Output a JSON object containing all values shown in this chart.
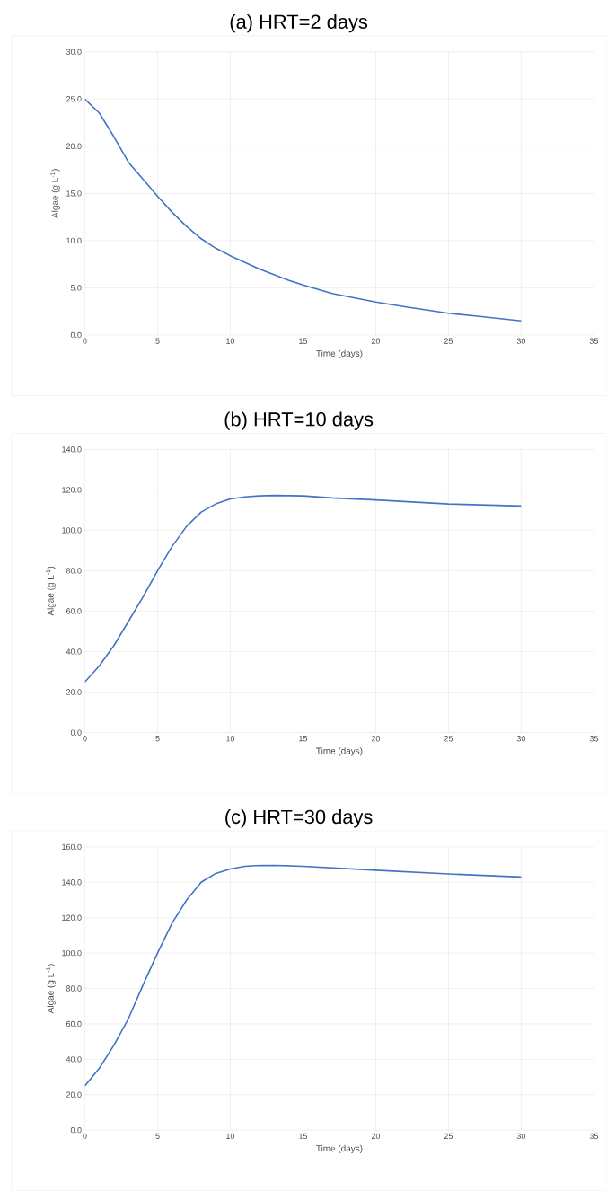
{
  "chart_data": [
    {
      "type": "line",
      "title": "(a) HRT=2 days",
      "xlabel": "Time (days)",
      "ylabel": "Algae (g L$^{-1}$)",
      "color": "#4472c4",
      "grid": true,
      "x": [
        0,
        1,
        2,
        3,
        4,
        5,
        6,
        7,
        8,
        9,
        10,
        12,
        14,
        15,
        17,
        20,
        22,
        25,
        27,
        30
      ],
      "values": [
        25,
        23.5,
        21,
        18.3,
        16.5,
        14.7,
        13,
        11.5,
        10.2,
        9.2,
        8.4,
        7,
        5.8,
        5.3,
        4.4,
        3.5,
        3,
        2.3,
        2,
        1.5
      ],
      "xlim": [
        0,
        35
      ],
      "xticks": [
        0,
        5,
        10,
        15,
        20,
        25,
        30,
        35
      ],
      "ylim": [
        0,
        30
      ],
      "yticks": [
        {
          "value": 0,
          "label": "0.0"
        },
        {
          "value": 5,
          "label": "5.0"
        },
        {
          "value": 10,
          "label": "10.0"
        },
        {
          "value": 15,
          "label": "15.0"
        },
        {
          "value": 20,
          "label": "20.0"
        },
        {
          "value": 25,
          "label": "25.0"
        },
        {
          "value": 30,
          "label": "30.0"
        }
      ]
    },
    {
      "type": "line",
      "title": "(b) HRT=10 days",
      "xlabel": "Time (days)",
      "ylabel": "Algae (g L$^{-1}$)",
      "color": "#4472c4",
      "grid": true,
      "x": [
        0,
        1,
        2,
        3,
        4,
        5,
        6,
        7,
        8,
        9,
        10,
        11,
        12,
        13,
        15,
        17,
        20,
        25,
        30
      ],
      "values": [
        25,
        33,
        43,
        55,
        67,
        80,
        92,
        102,
        109,
        113,
        115.5,
        116.5,
        117,
        117.2,
        117,
        116,
        115,
        113,
        112
      ],
      "xlim": [
        0,
        35
      ],
      "xticks": [
        0,
        5,
        10,
        15,
        20,
        25,
        30,
        35
      ],
      "ylim": [
        0,
        140
      ],
      "yticks": [
        {
          "value": 0,
          "label": "0.0"
        },
        {
          "value": 20,
          "label": "20.0"
        },
        {
          "value": 40,
          "label": "40.0"
        },
        {
          "value": 60,
          "label": "60.0"
        },
        {
          "value": 80,
          "label": "80.0"
        },
        {
          "value": 100,
          "label": "100.0"
        },
        {
          "value": 120,
          "label": "120.0"
        },
        {
          "value": 140,
          "label": "140.0"
        }
      ]
    },
    {
      "type": "line",
      "title": "(c) HRT=30 days",
      "xlabel": "Time (days)",
      "ylabel": "Algae (g L$^{-1}$)",
      "color": "#4472c4",
      "grid": true,
      "x": [
        0,
        1,
        2,
        3,
        4,
        5,
        6,
        7,
        8,
        9,
        10,
        11,
        12,
        13,
        15,
        20,
        25,
        30
      ],
      "values": [
        25,
        35,
        48,
        63,
        82,
        100,
        117,
        130,
        140,
        145,
        147.5,
        149,
        149.5,
        149.6,
        149,
        146.8,
        144.7,
        143
      ],
      "xlim": [
        0,
        35
      ],
      "xticks": [
        0,
        5,
        10,
        15,
        20,
        25,
        30,
        35
      ],
      "ylim": [
        0,
        160
      ],
      "yticks": [
        {
          "value": 0,
          "label": "0.0"
        },
        {
          "value": 20,
          "label": "20.0"
        },
        {
          "value": 40,
          "label": "40.0"
        },
        {
          "value": 60,
          "label": "60.0"
        },
        {
          "value": 80,
          "label": "80.0"
        },
        {
          "value": 100,
          "label": "100.0"
        },
        {
          "value": 120,
          "label": "120.0"
        },
        {
          "value": 140,
          "label": "140.0"
        },
        {
          "value": 160,
          "label": "160.0"
        }
      ]
    }
  ]
}
